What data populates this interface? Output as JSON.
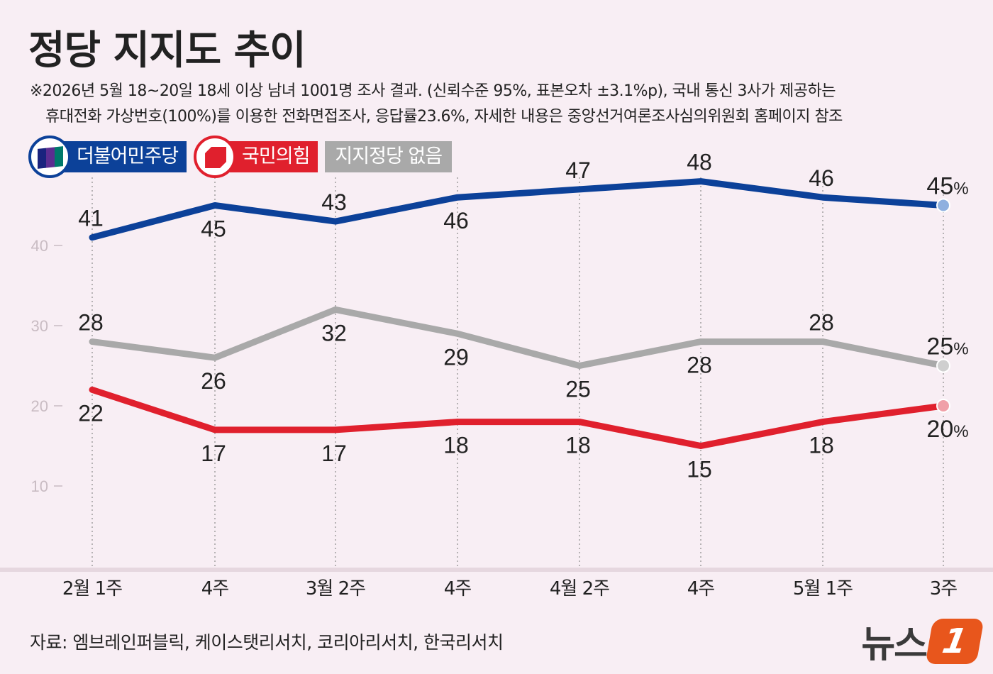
{
  "title": "정당 지지도 추이",
  "note_line1": "※2026년 5월 18~20일 18세 이상 남녀 1001명 조사 결과. (신뢰수준 95%, 표본오차 ±3.1%p), 국내 통신 3사가 제공하는",
  "note_line2": "휴대전화 가상번호(100%)를 이용한 전화면접조사, 응답률23.6%, 자세한 내용은 중앙선거여론조사심의위원회 홈페이지 참조",
  "legend": [
    {
      "label": "더불어민주당",
      "icon": "flag-icon"
    },
    {
      "label": "국민의힘",
      "icon": "cube-icon"
    },
    {
      "label": "지지정당 없음",
      "icon": ""
    }
  ],
  "source": "자료: 엠브레인퍼블릭, 케이스탯리서치, 코리아리서치, 한국리서치",
  "logo_text": "뉴스",
  "logo_badge": "1",
  "chart_data": {
    "type": "line",
    "categories": [
      "2월 1주",
      "4주",
      "3월 2주",
      "4주",
      "4월 2주",
      "4주",
      "5월 1주",
      "3주"
    ],
    "yticks": [
      10,
      20,
      30,
      40
    ],
    "ylim": [
      0,
      50
    ],
    "grid": "vertical dotted",
    "last_label_suffix": "%",
    "series": [
      {
        "name": "더불어민주당",
        "color": "#0c4199",
        "end_color": "#8fb0df",
        "values": [
          41,
          45,
          43,
          46,
          47,
          48,
          46,
          45
        ]
      },
      {
        "name": "지지정당 없음",
        "color": "#a9a9a9",
        "end_color": "#cfcfcf",
        "values": [
          28,
          26,
          32,
          29,
          25,
          28,
          28,
          25
        ]
      },
      {
        "name": "국민의힘",
        "color": "#e0202d",
        "end_color": "#f0a0a8",
        "values": [
          22,
          17,
          17,
          18,
          18,
          15,
          18,
          20
        ]
      }
    ]
  }
}
